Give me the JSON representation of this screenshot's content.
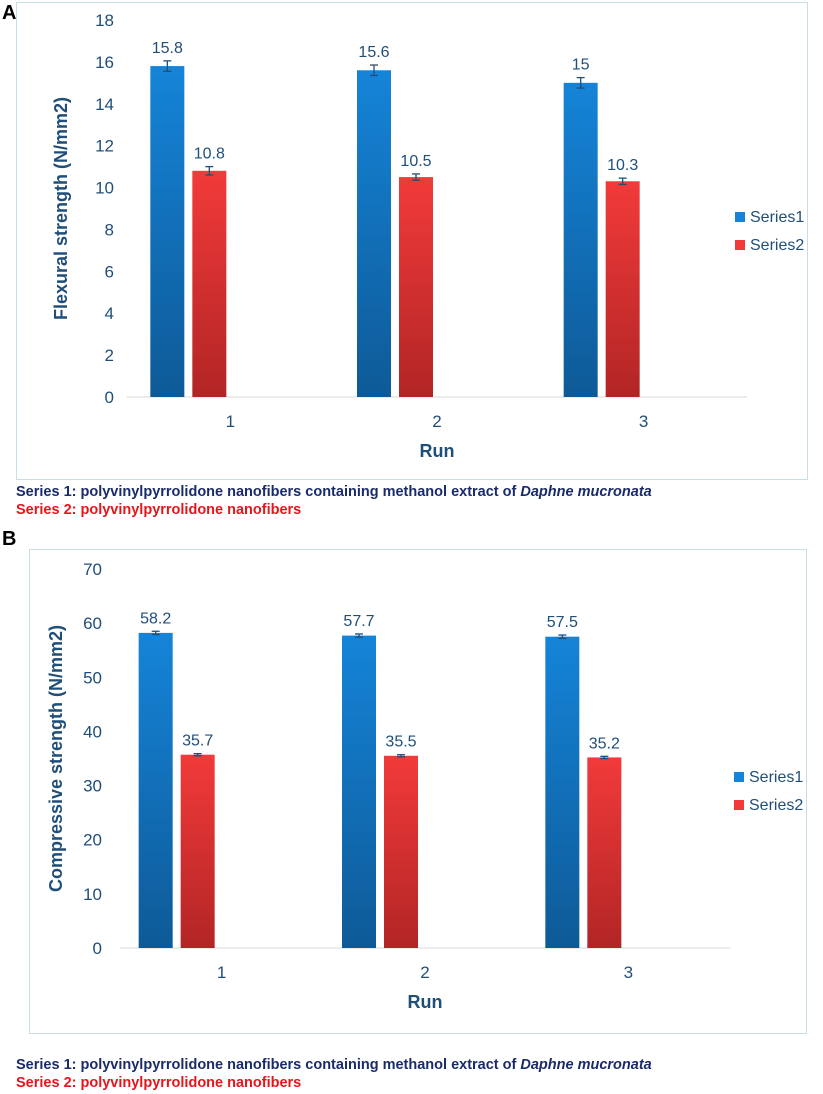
{
  "panels": {
    "a": {
      "letter": "A"
    },
    "b": {
      "letter": "B"
    }
  },
  "captions": {
    "a": {
      "series1_prefix": "Series 1: polyvinylpyrrolidone nanofibers containing methanol extract of ",
      "series1_species": "Daphne mucronata",
      "series2": "Series 2: polyvinylpyrrolidone nanofibers"
    },
    "b": {
      "series1_prefix": "Series 1: polyvinylpyrrolidone nanofibers containing methanol extract of ",
      "series1_species": "Daphne mucronata",
      "series2": "Series 2: polyvinylpyrrolidone nanofibers"
    }
  },
  "colors": {
    "series1_top": "#1584d8",
    "series1_bottom": "#0e5a97",
    "series2_top": "#f23a3a",
    "series2_bottom": "#b22525",
    "text": "#1f4e79"
  },
  "chart_data": [
    {
      "type": "bar",
      "categories": [
        "1",
        "2",
        "3"
      ],
      "series": [
        {
          "name": "Series1",
          "values": [
            15.8,
            15.6,
            15
          ],
          "labels": [
            "15.8",
            "15.6",
            "15"
          ],
          "error": [
            0.25,
            0.25,
            0.25
          ]
        },
        {
          "name": "Series2",
          "values": [
            10.8,
            10.5,
            10.3
          ],
          "labels": [
            "10.8",
            "10.5",
            "10.3"
          ],
          "error": [
            0.2,
            0.15,
            0.15
          ]
        }
      ],
      "xlabel": "Run",
      "ylabel": "Flexural strength (N/mm2)",
      "ylim": [
        0,
        18
      ],
      "yticks": [
        0,
        2,
        4,
        6,
        8,
        10,
        12,
        14,
        16,
        18
      ],
      "legend_position": "right"
    },
    {
      "type": "bar",
      "categories": [
        "1",
        "2",
        "3"
      ],
      "series": [
        {
          "name": "Series1",
          "values": [
            58.2,
            57.7,
            57.5
          ],
          "labels": [
            "58.2",
            "57.7",
            "57.5"
          ],
          "error": [
            0.3,
            0.3,
            0.3
          ]
        },
        {
          "name": "Series2",
          "values": [
            35.7,
            35.5,
            35.2
          ],
          "labels": [
            "35.7",
            "35.5",
            "35.2"
          ],
          "error": [
            0.2,
            0.2,
            0.2
          ]
        }
      ],
      "xlabel": "Run",
      "ylabel": "Compressive  strength (N/mm2)",
      "ylim": [
        0,
        70
      ],
      "yticks": [
        0,
        10,
        20,
        30,
        40,
        50,
        60,
        70
      ],
      "legend_position": "right"
    }
  ]
}
